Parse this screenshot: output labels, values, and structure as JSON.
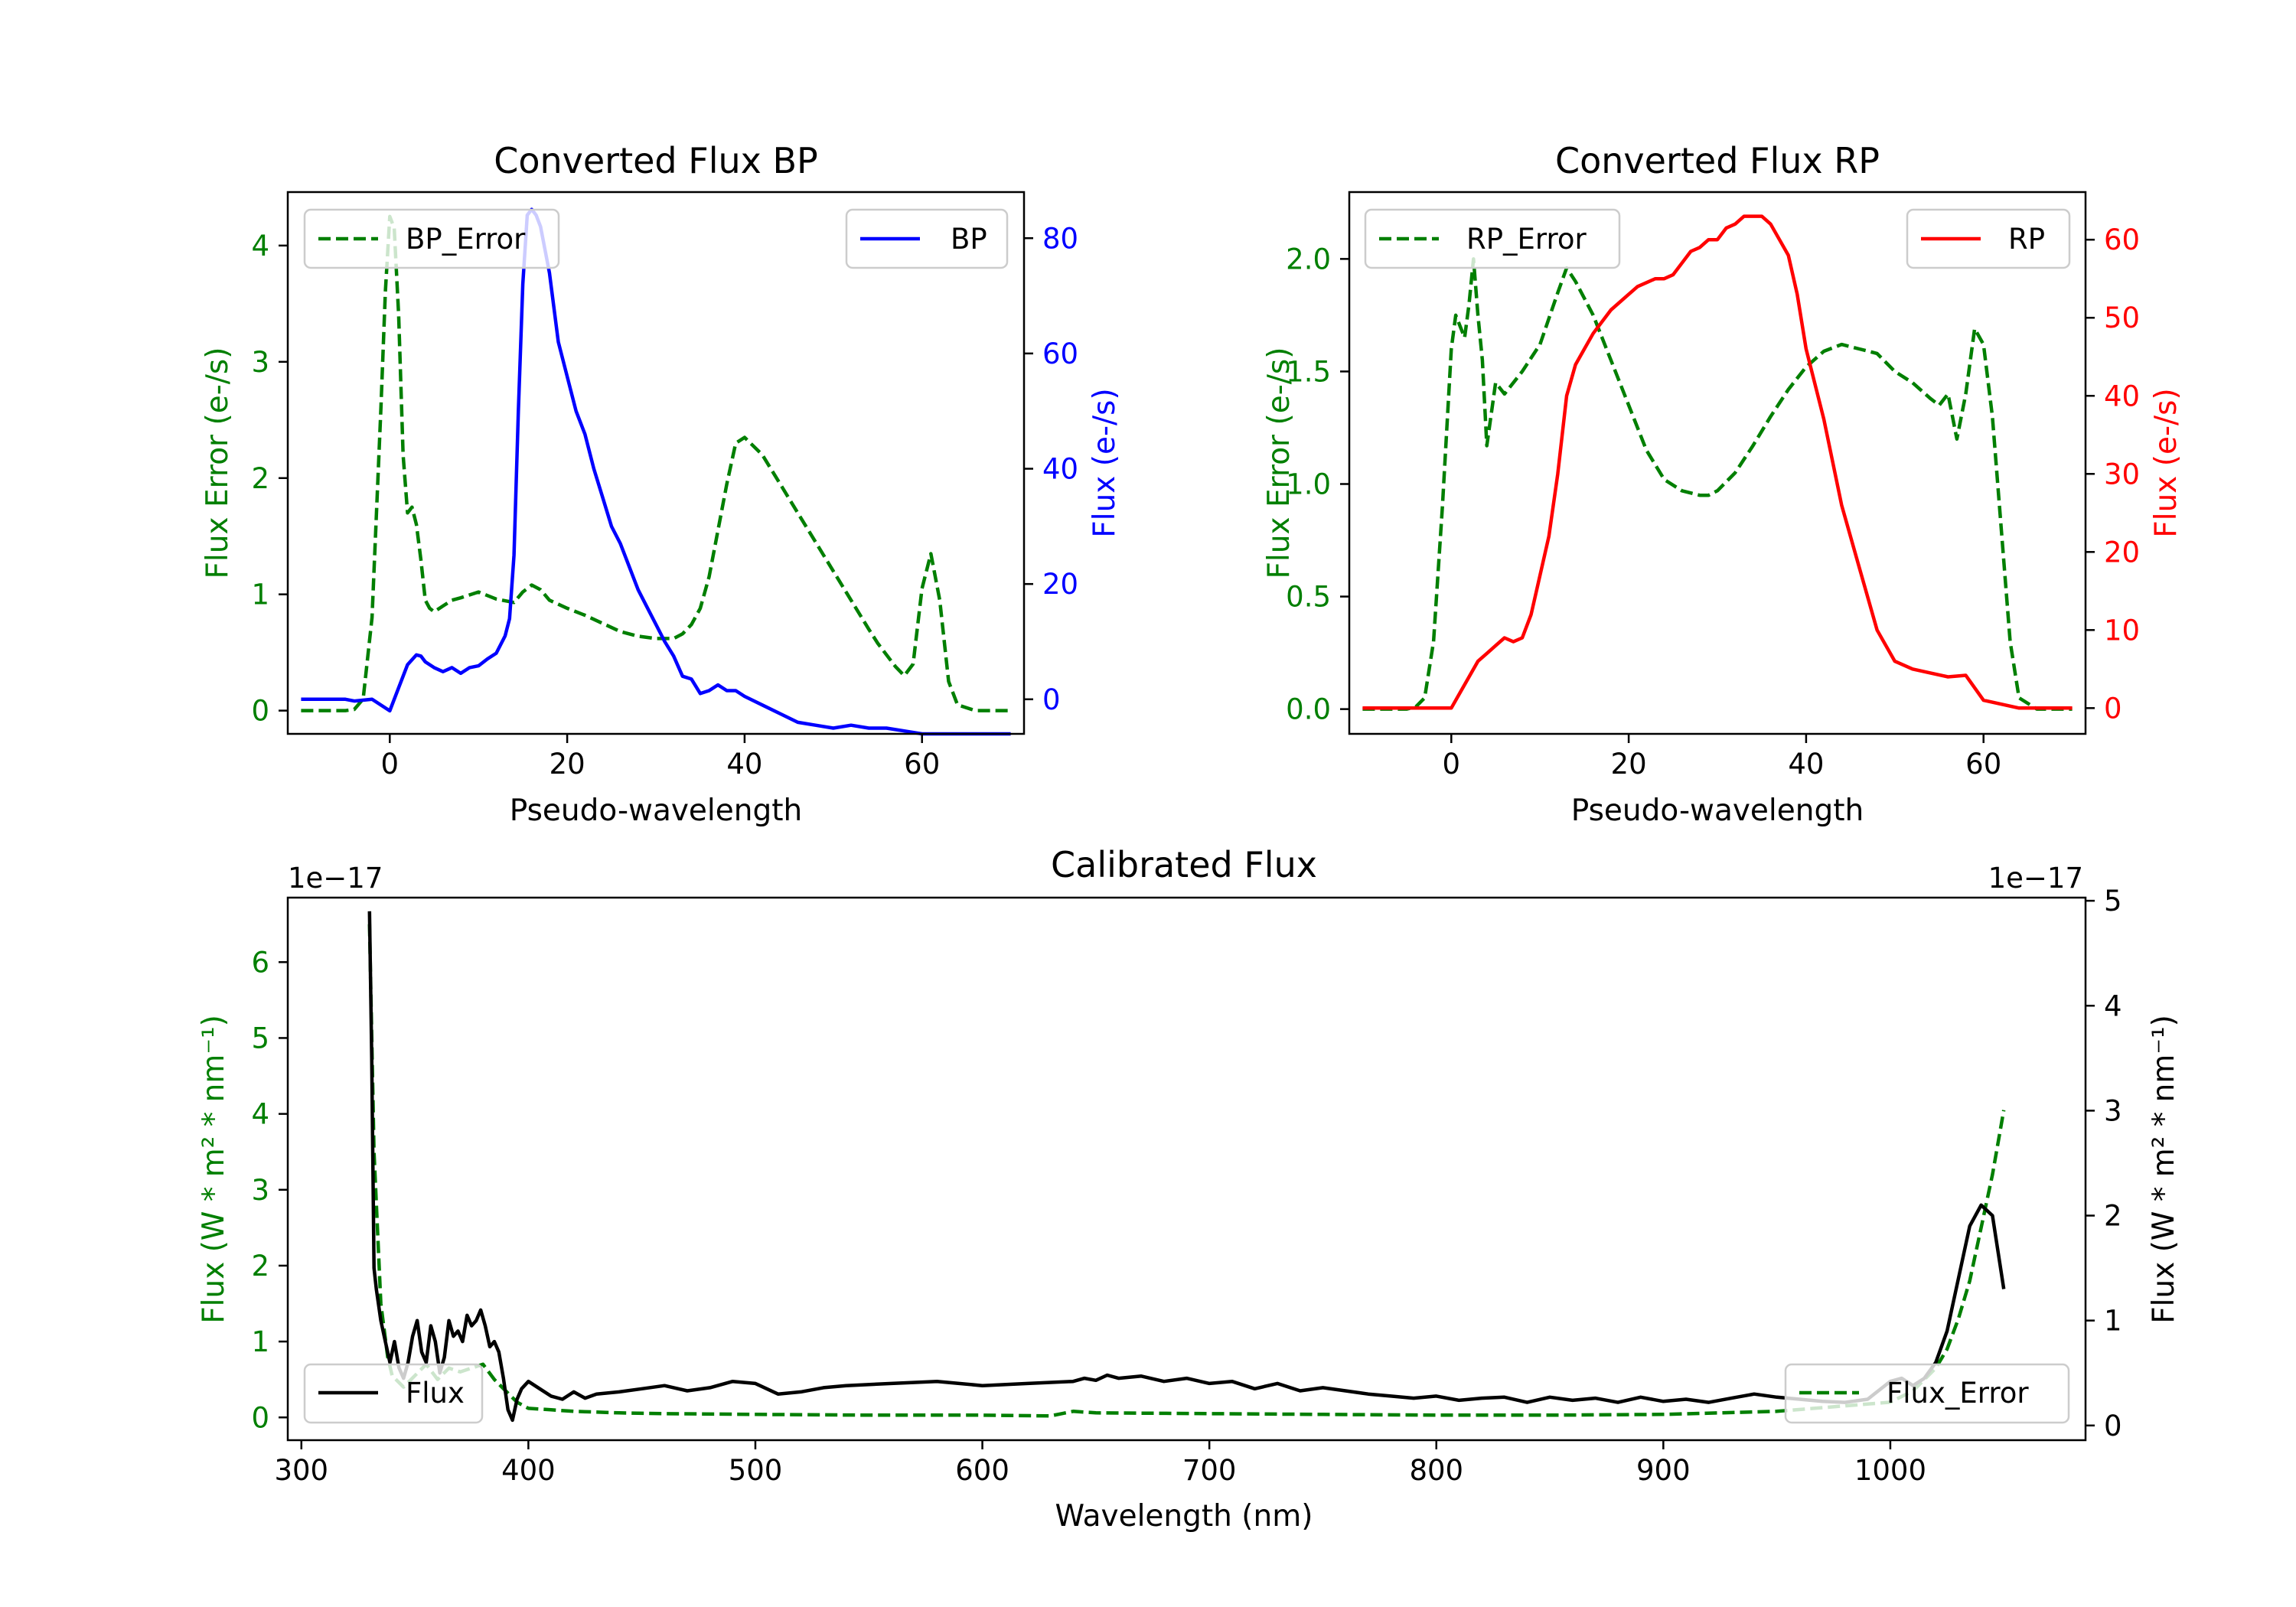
{
  "colors": {
    "error": "#007f00",
    "bp": "#0000ff",
    "rp": "#ff0000",
    "flux": "#000000",
    "axis": "#000000"
  },
  "chart_data": [
    {
      "id": "bp",
      "type": "line",
      "title": "Converted Flux BP",
      "xlabel": "Pseudo-wavelength",
      "ylabel_left": "Flux Error (e-/s)",
      "ylabel_right": "Flux (e-/s)",
      "xlim": [
        -11.5,
        71.5
      ],
      "ylim_left": [
        -0.2,
        4.46
      ],
      "ylim_right": [
        -6.0,
        88.0
      ],
      "xticks": [
        0,
        20,
        40,
        60
      ],
      "yticks_left": [
        0,
        1,
        2,
        3,
        4
      ],
      "yticks_right": [
        0,
        20,
        40,
        60,
        80
      ],
      "legend_left": "BP_Error",
      "legend_right": "BP",
      "series": [
        {
          "name": "BP_Error",
          "axis": "left",
          "style": "dashed",
          "color": "#007f00",
          "x": [
            -10,
            -5,
            -4,
            -3,
            -2,
            -1,
            -0.5,
            0,
            0.5,
            1,
            1.5,
            2,
            2.5,
            3,
            3.5,
            4,
            4.5,
            5,
            6,
            7,
            8,
            10,
            12,
            14,
            15,
            16,
            17,
            18,
            20,
            22,
            24,
            26,
            28,
            30,
            32,
            33,
            34,
            35,
            36,
            37,
            38,
            39,
            40,
            42,
            44,
            46,
            48,
            50,
            52,
            54,
            55,
            56,
            57,
            58,
            59,
            60,
            61,
            62,
            63,
            64,
            66,
            68,
            70
          ],
          "y": [
            0,
            0,
            0.01,
            0.1,
            0.8,
            2.6,
            3.6,
            4.25,
            4.15,
            3.4,
            2.2,
            1.7,
            1.75,
            1.6,
            1.3,
            0.95,
            0.88,
            0.85,
            0.9,
            0.95,
            0.97,
            1.02,
            0.96,
            0.93,
            1.02,
            1.08,
            1.04,
            0.95,
            0.88,
            0.82,
            0.75,
            0.68,
            0.64,
            0.62,
            0.62,
            0.66,
            0.74,
            0.88,
            1.15,
            1.55,
            1.95,
            2.3,
            2.35,
            2.2,
            1.95,
            1.7,
            1.45,
            1.2,
            0.95,
            0.7,
            0.58,
            0.48,
            0.38,
            0.3,
            0.4,
            1.05,
            1.35,
            0.95,
            0.25,
            0.05,
            0,
            0,
            0
          ]
        },
        {
          "name": "BP",
          "axis": "right",
          "style": "solid",
          "color": "#0000ff",
          "x": [
            -10,
            -5,
            -4,
            -2,
            0,
            1,
            2,
            3,
            3.5,
            4,
            5,
            6,
            7,
            8,
            9,
            10,
            11,
            12,
            13,
            13.5,
            14,
            14.5,
            15,
            15.5,
            16,
            16.5,
            17,
            18,
            19,
            20,
            21,
            22,
            23,
            24,
            25,
            26,
            27,
            28,
            29,
            30,
            31,
            32,
            33,
            34,
            35,
            36,
            37,
            38,
            39,
            40,
            42,
            44,
            46,
            48,
            50,
            52,
            54,
            56,
            58,
            60,
            62,
            64,
            66,
            68,
            70
          ],
          "y": [
            0,
            0,
            -0.3,
            0,
            -2,
            2,
            6,
            7.7,
            7.5,
            6.5,
            5.5,
            4.8,
            5.5,
            4.5,
            5.5,
            5.8,
            7,
            8,
            11,
            14,
            25,
            50,
            72,
            84,
            85,
            84,
            82,
            74,
            62,
            56,
            50,
            46,
            40,
            35,
            30,
            27,
            23,
            19,
            16,
            13,
            10,
            7.5,
            4,
            3.5,
            1,
            1.5,
            2.5,
            1.5,
            1.5,
            0.5,
            -1,
            -2.5,
            -4,
            -4.5,
            -5,
            -4.5,
            -5,
            -5,
            -5.5,
            -6,
            -6,
            -6,
            -6,
            -6,
            -6
          ]
        }
      ]
    },
    {
      "id": "rp",
      "type": "line",
      "title": "Converted Flux RP",
      "xlabel": "Pseudo-wavelength",
      "ylabel_left": "Flux Error (e-/s)",
      "ylabel_right": "Flux (e-/s)",
      "xlim": [
        -11.5,
        71.5
      ],
      "ylim_left": [
        -0.11,
        2.297
      ],
      "ylim_right": [
        -3.3,
        66.1
      ],
      "xticks": [
        0,
        20,
        40,
        60
      ],
      "yticks_left": [
        0.0,
        0.5,
        1.0,
        1.5,
        2.0
      ],
      "yticks_right": [
        0,
        10,
        20,
        30,
        40,
        50,
        60
      ],
      "tick_format_left": 1,
      "legend_left": "RP_Error",
      "legend_right": "RP",
      "series": [
        {
          "name": "RP_Error",
          "axis": "left",
          "style": "dashed",
          "color": "#007f00",
          "x": [
            -10,
            -5,
            -4,
            -3,
            -2,
            -1,
            0,
            0.5,
            1,
            1.5,
            2,
            2.5,
            3,
            3.5,
            4,
            5,
            6,
            8,
            10,
            12,
            13,
            14,
            16,
            18,
            20,
            22,
            24,
            26,
            28,
            29,
            30,
            32,
            34,
            36,
            38,
            40,
            42,
            44,
            46,
            48,
            50,
            52,
            54,
            55,
            56,
            57,
            58,
            59,
            60,
            61,
            62,
            63,
            64,
            66,
            68,
            70
          ],
          "y": [
            0,
            0,
            0.01,
            0.05,
            0.3,
            0.9,
            1.6,
            1.75,
            1.7,
            1.65,
            1.8,
            2.0,
            1.75,
            1.55,
            1.17,
            1.45,
            1.4,
            1.5,
            1.62,
            1.85,
            1.96,
            1.9,
            1.75,
            1.55,
            1.35,
            1.15,
            1.02,
            0.97,
            0.95,
            0.95,
            0.97,
            1.05,
            1.17,
            1.3,
            1.42,
            1.52,
            1.59,
            1.62,
            1.6,
            1.58,
            1.5,
            1.45,
            1.38,
            1.35,
            1.4,
            1.2,
            1.4,
            1.69,
            1.62,
            1.3,
            0.8,
            0.3,
            0.05,
            0,
            0,
            0
          ]
        },
        {
          "name": "RP",
          "axis": "right",
          "style": "solid",
          "color": "#ff0000",
          "x": [
            -10,
            -5,
            -4,
            -2,
            0,
            1,
            2,
            3,
            4,
            5,
            6,
            7,
            8,
            9,
            10,
            11,
            12,
            13,
            14,
            15,
            16,
            18,
            20,
            21,
            22,
            23,
            24,
            25,
            26,
            27,
            28,
            29,
            30,
            31,
            32,
            33,
            34,
            35,
            36,
            37,
            38,
            39,
            40,
            42,
            44,
            46,
            48,
            50,
            52,
            54,
            56,
            58,
            60,
            62,
            64,
            66,
            68,
            70
          ],
          "y": [
            0,
            0,
            0,
            0,
            0,
            2,
            4,
            6,
            7,
            8,
            9,
            8.5,
            9,
            12,
            17,
            22,
            30,
            40,
            44,
            46,
            48,
            51,
            53,
            54,
            54.5,
            55,
            55,
            55.5,
            57,
            58.5,
            59,
            60,
            60,
            61.5,
            62,
            63,
            63,
            63,
            62,
            60,
            58,
            53,
            46,
            37,
            26,
            18,
            10,
            6,
            5,
            4.5,
            4,
            4.2,
            1,
            0.5,
            0,
            0,
            0,
            0
          ]
        }
      ]
    },
    {
      "id": "cal",
      "type": "line",
      "title": "Calibrated Flux",
      "xlabel": "Wavelength (nm)",
      "ylabel_left": "Flux (W * m² * nm⁻¹)",
      "ylabel_right": "Flux (W * m² * nm⁻¹)",
      "offset_text_left": "1e−17",
      "offset_text_right": "1e−17",
      "xlim": [
        294,
        1086
      ],
      "ylim_left": [
        -0.3,
        6.85
      ],
      "ylim_right": [
        -0.14,
        5.03
      ],
      "xticks": [
        300,
        400,
        500,
        600,
        700,
        800,
        900,
        1000
      ],
      "yticks_left": [
        0,
        1,
        2,
        3,
        4,
        5,
        6
      ],
      "yticks_right": [
        0,
        1,
        2,
        3,
        4,
        5
      ],
      "legend_left": "Flux",
      "legend_right": "Flux_Error",
      "series": [
        {
          "name": "Flux_Error",
          "axis": "left",
          "style": "dashed",
          "color": "#007f00",
          "x": [
            330,
            332,
            335,
            338,
            340,
            345,
            350,
            355,
            360,
            365,
            370,
            375,
            380,
            385,
            390,
            395,
            400,
            410,
            420,
            440,
            460,
            500,
            550,
            600,
            630,
            635,
            640,
            650,
            700,
            750,
            800,
            850,
            900,
            950,
            1000,
            1010,
            1020,
            1025,
            1030,
            1035,
            1040,
            1045,
            1050
          ],
          "y": [
            6.5,
            3.5,
            1.5,
            0.8,
            0.55,
            0.4,
            0.55,
            0.7,
            0.5,
            0.65,
            0.6,
            0.65,
            0.7,
            0.5,
            0.35,
            0.2,
            0.12,
            0.1,
            0.08,
            0.06,
            0.05,
            0.04,
            0.03,
            0.03,
            0.02,
            0.05,
            0.08,
            0.06,
            0.05,
            0.04,
            0.03,
            0.03,
            0.04,
            0.08,
            0.2,
            0.35,
            0.65,
            0.9,
            1.3,
            1.8,
            2.5,
            3.2,
            4.05
          ]
        },
        {
          "name": "Flux",
          "axis": "right",
          "style": "solid",
          "color": "#000000",
          "x": [
            330,
            331,
            332,
            333,
            335,
            337,
            339,
            341,
            343,
            345,
            347,
            349,
            351,
            353,
            355,
            357,
            359,
            361,
            363,
            365,
            367,
            369,
            371,
            373,
            375,
            377,
            379,
            381,
            383,
            385,
            387,
            389,
            391,
            393,
            395,
            397,
            400,
            405,
            410,
            415,
            420,
            425,
            430,
            440,
            450,
            460,
            470,
            480,
            490,
            500,
            510,
            520,
            530,
            540,
            560,
            580,
            600,
            620,
            640,
            645,
            650,
            655,
            660,
            670,
            680,
            690,
            700,
            710,
            720,
            730,
            740,
            750,
            760,
            770,
            780,
            790,
            800,
            810,
            820,
            830,
            840,
            850,
            860,
            870,
            880,
            890,
            900,
            910,
            920,
            930,
            940,
            950,
            960,
            970,
            980,
            990,
            1000,
            1005,
            1010,
            1015,
            1020,
            1025,
            1030,
            1035,
            1040,
            1045,
            1050
          ],
          "y": [
            4.9,
            3.5,
            1.5,
            1.3,
            1.0,
            0.8,
            0.6,
            0.8,
            0.55,
            0.45,
            0.6,
            0.85,
            1.0,
            0.7,
            0.6,
            0.95,
            0.8,
            0.5,
            0.65,
            1.0,
            0.85,
            0.9,
            0.8,
            1.05,
            0.95,
            1.0,
            1.1,
            0.95,
            0.75,
            0.8,
            0.7,
            0.45,
            0.15,
            0.05,
            0.25,
            0.35,
            0.42,
            0.35,
            0.28,
            0.25,
            0.32,
            0.26,
            0.3,
            0.32,
            0.35,
            0.38,
            0.33,
            0.36,
            0.42,
            0.4,
            0.3,
            0.32,
            0.36,
            0.38,
            0.4,
            0.42,
            0.38,
            0.4,
            0.42,
            0.45,
            0.43,
            0.48,
            0.45,
            0.47,
            0.42,
            0.45,
            0.4,
            0.42,
            0.35,
            0.4,
            0.33,
            0.36,
            0.33,
            0.3,
            0.28,
            0.26,
            0.28,
            0.24,
            0.26,
            0.27,
            0.22,
            0.27,
            0.24,
            0.26,
            0.22,
            0.27,
            0.23,
            0.25,
            0.22,
            0.26,
            0.3,
            0.27,
            0.25,
            0.23,
            0.22,
            0.25,
            0.42,
            0.45,
            0.38,
            0.45,
            0.6,
            0.9,
            1.4,
            1.9,
            2.1,
            2.0,
            1.3
          ]
        }
      ]
    }
  ]
}
